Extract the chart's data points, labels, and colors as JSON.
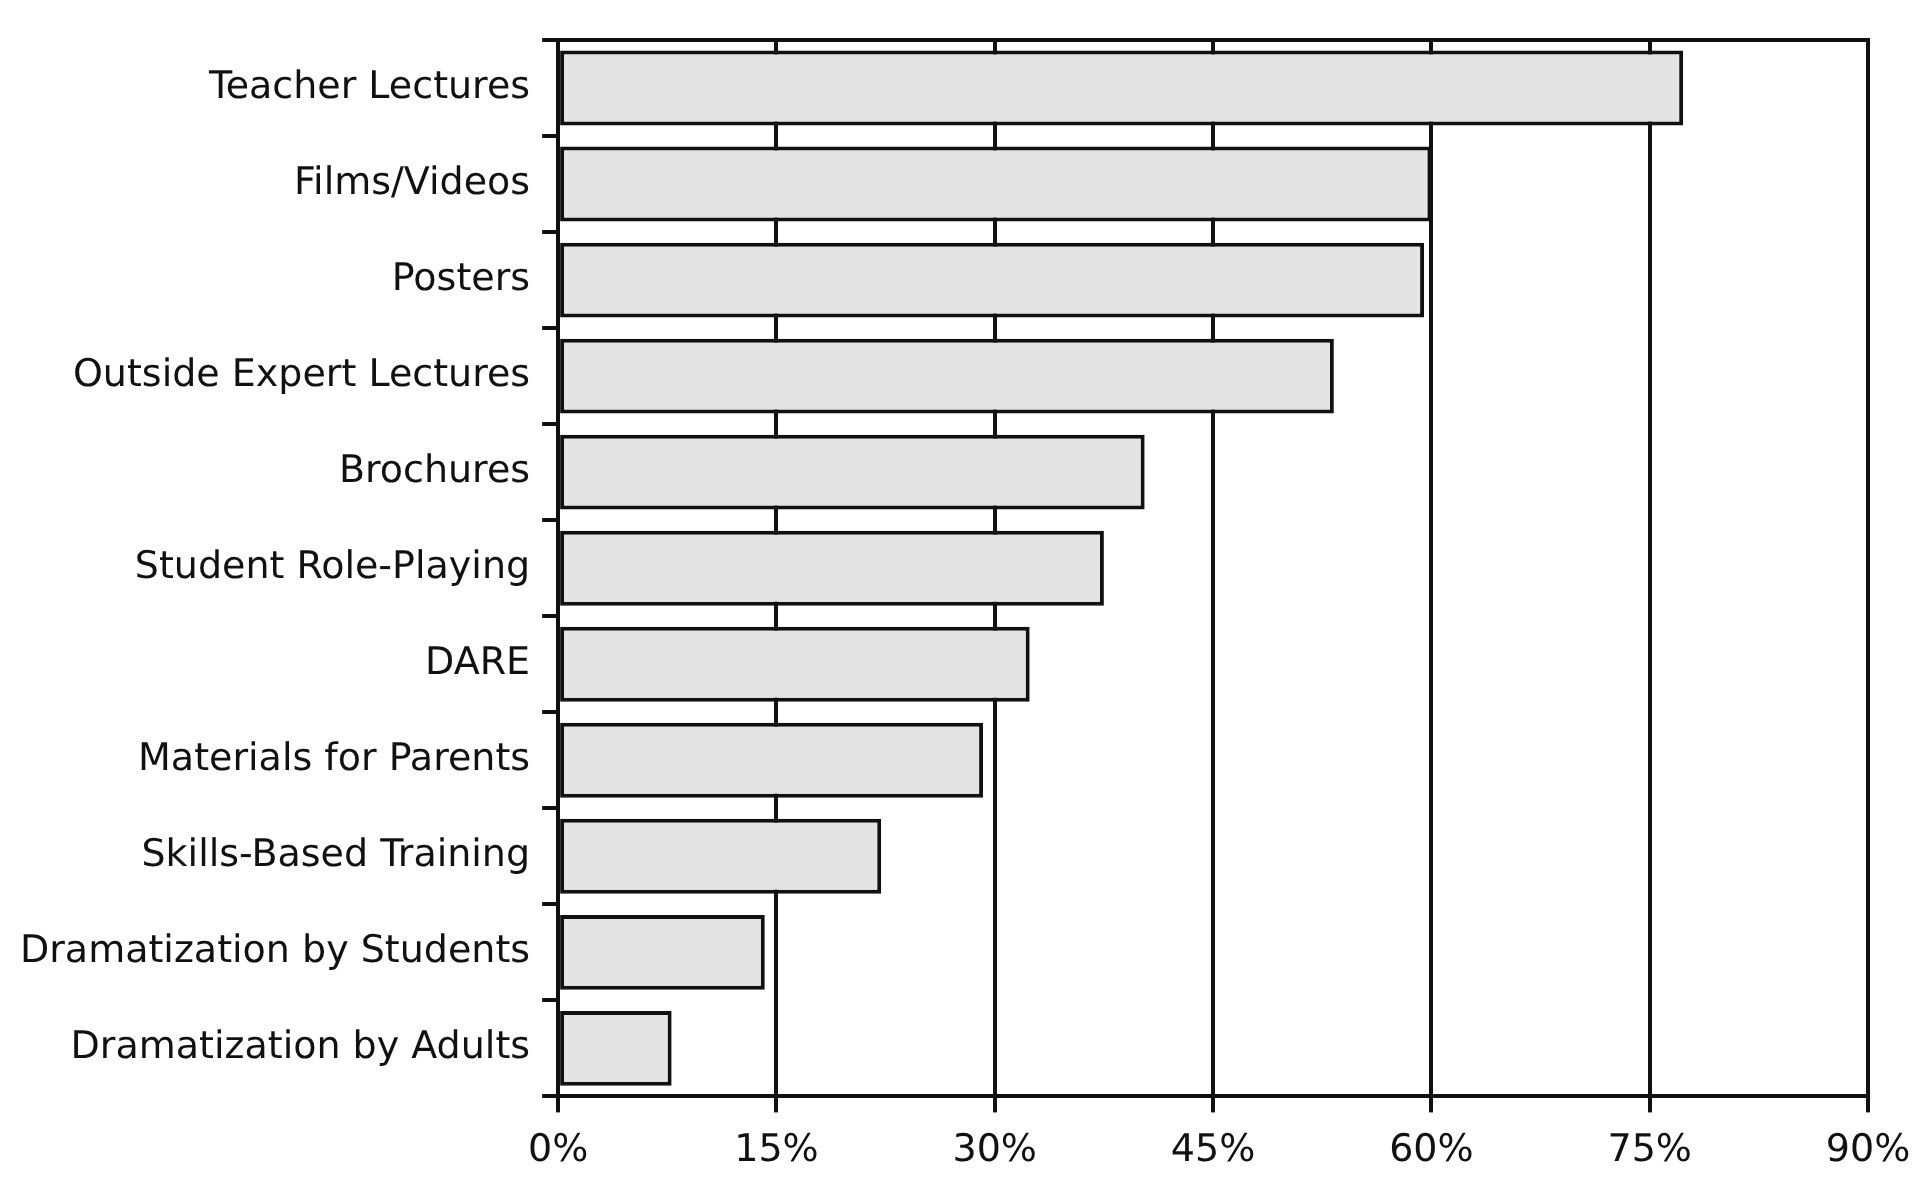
{
  "chart_data": {
    "type": "bar",
    "orientation": "horizontal",
    "categories": [
      "Teacher Lectures",
      "Films/Videos",
      "Posters",
      "Outside Expert Lectures",
      "Brochures",
      "Student Role-Playing",
      "DARE",
      "Materials for Parents",
      "Skills-Based Training",
      "Dramatization by Students",
      "Dramatization by Adults"
    ],
    "values": [
      77.3,
      60,
      59.5,
      53.3,
      40.3,
      37.5,
      32.4,
      29.2,
      22.2,
      14.2,
      7.8
    ],
    "color": "#e4e4e4",
    "xlim": [
      0,
      90
    ],
    "xticks": [
      {
        "value": 0,
        "label": "0%"
      },
      {
        "value": 15,
        "label": "15%"
      },
      {
        "value": 30,
        "label": "30%"
      },
      {
        "value": 45,
        "label": "45%"
      },
      {
        "value": 60,
        "label": "60%"
      },
      {
        "value": 75,
        "label": "75%"
      },
      {
        "value": 90,
        "label": "90%"
      }
    ],
    "grid": "x",
    "legend": false
  }
}
